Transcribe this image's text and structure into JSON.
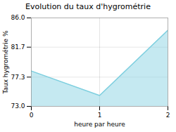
{
  "chart_data": {
    "type": "area",
    "title": "Evolution du taux d'hygrométrie",
    "xlabel": "heure par heure",
    "ylabel": "Taux hygrométrie %",
    "x": [
      0,
      1,
      2
    ],
    "values": [
      78.2,
      74.6,
      84.2
    ],
    "color": "#7ecfdf",
    "xlim": [
      0,
      2
    ],
    "ylim": [
      73.0,
      86.0
    ],
    "xticks": [
      0,
      1,
      2
    ],
    "yticks": [
      {
        "value": 73.0,
        "label": "73.0"
      },
      77.3,
      81.7,
      {
        "value": 86.0,
        "label": "86.0"
      }
    ],
    "grid": true
  }
}
